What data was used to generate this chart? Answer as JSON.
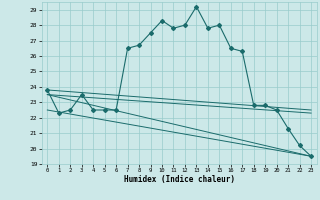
{
  "xlabel": "Humidex (Indice chaleur)",
  "xlim": [
    -0.5,
    23.5
  ],
  "ylim": [
    19,
    29.5
  ],
  "yticks": [
    19,
    20,
    21,
    22,
    23,
    24,
    25,
    26,
    27,
    28,
    29
  ],
  "xticks": [
    0,
    1,
    2,
    3,
    4,
    5,
    6,
    7,
    8,
    9,
    10,
    11,
    12,
    13,
    14,
    15,
    16,
    17,
    18,
    19,
    20,
    21,
    22,
    23
  ],
  "bg_color": "#cce8e8",
  "grid_color": "#99cccc",
  "line_color": "#1a6b6b",
  "main_y": [
    23.8,
    22.3,
    22.5,
    23.5,
    22.5,
    22.5,
    22.5,
    26.5,
    26.7,
    27.5,
    28.3,
    27.8,
    28.0,
    29.2,
    27.8,
    28.0,
    26.5,
    26.3,
    22.8,
    22.8,
    22.5,
    21.3,
    20.2,
    19.5
  ],
  "trend1_x": [
    0,
    23
  ],
  "trend1_y": [
    23.8,
    22.5
  ],
  "trend2_x": [
    0,
    23
  ],
  "trend2_y": [
    23.5,
    22.3
  ],
  "trend3_x": [
    0,
    23
  ],
  "trend3_y": [
    23.5,
    19.5
  ],
  "trend4_x": [
    0,
    23
  ],
  "trend4_y": [
    22.5,
    19.5
  ]
}
